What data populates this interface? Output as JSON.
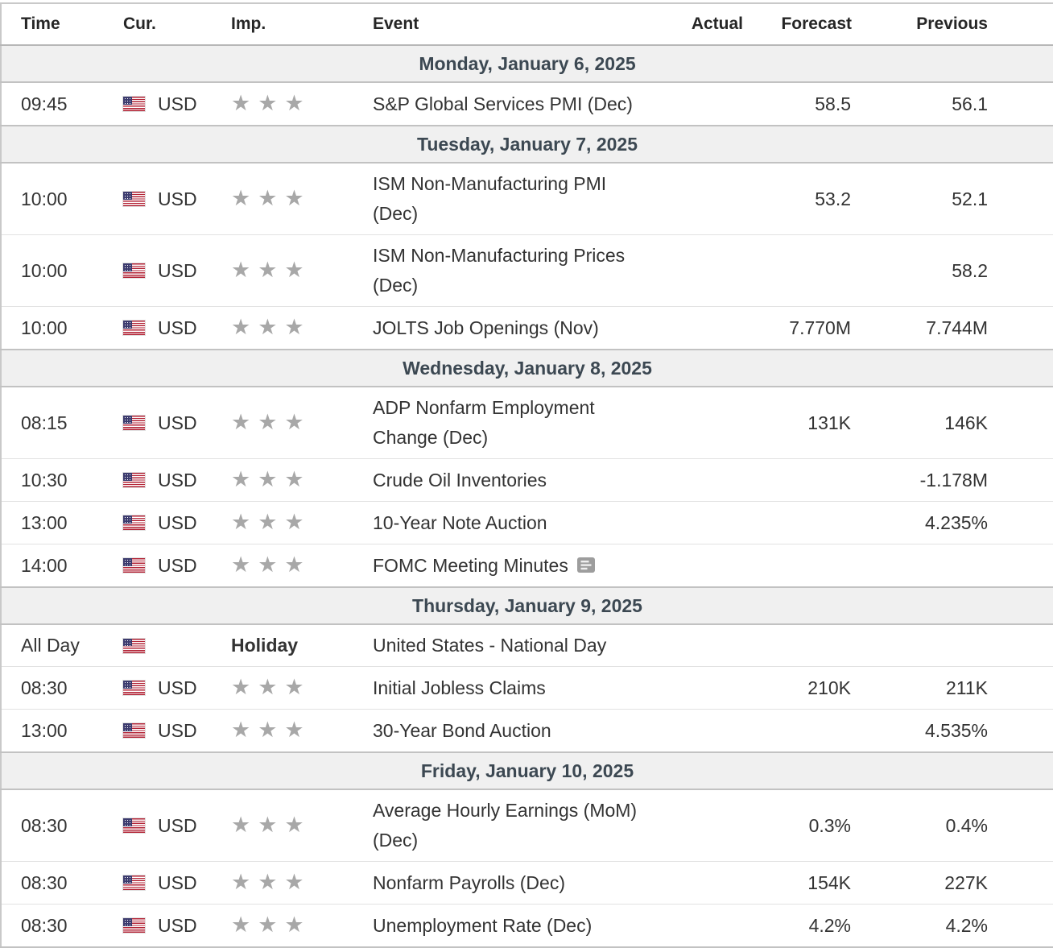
{
  "table": {
    "headers": {
      "time": "Time",
      "cur": "Cur.",
      "imp": "Imp.",
      "event": "Event",
      "actual": "Actual",
      "forecast": "Forecast",
      "previous": "Previous"
    }
  },
  "icons": {
    "star_char": "★",
    "flag": "us-flag",
    "report": "report-bubble"
  },
  "colors": {
    "day_header_bg": "#f0f0f0",
    "day_header_text": "#3c4852",
    "header_text": "#262626",
    "body_text": "#333333",
    "forecast_text": "#555555",
    "previous_text": "#0f0f0f",
    "star": "#a8a8a8",
    "flag_red": "#B22234",
    "flag_blue": "#3C3B6E",
    "row_divider": "#e2e2e2",
    "section_border": "#c2c2c2"
  },
  "days": [
    {
      "label": "Monday, January 6, 2025",
      "events": [
        {
          "time": "09:45",
          "currency": "USD",
          "importance": 3,
          "event": "S&P Global Services PMI (Dec)",
          "actual": "",
          "forecast": "58.5",
          "previous": "56.1"
        }
      ]
    },
    {
      "label": "Tuesday, January 7, 2025",
      "events": [
        {
          "time": "10:00",
          "currency": "USD",
          "importance": 3,
          "event": "ISM Non-Manufacturing PMI (Dec)",
          "actual": "",
          "forecast": "53.2",
          "previous": "52.1"
        },
        {
          "time": "10:00",
          "currency": "USD",
          "importance": 3,
          "event": "ISM Non-Manufacturing Prices (Dec)",
          "actual": "",
          "forecast": "",
          "previous": "58.2"
        },
        {
          "time": "10:00",
          "currency": "USD",
          "importance": 3,
          "event": "JOLTS Job Openings (Nov)",
          "actual": "",
          "forecast": "7.770M",
          "previous": "7.744M"
        }
      ]
    },
    {
      "label": "Wednesday, January 8, 2025",
      "events": [
        {
          "time": "08:15",
          "currency": "USD",
          "importance": 3,
          "event": "ADP Nonfarm Employment Change (Dec)",
          "actual": "",
          "forecast": "131K",
          "previous": "146K"
        },
        {
          "time": "10:30",
          "currency": "USD",
          "importance": 3,
          "event": "Crude Oil Inventories",
          "actual": "",
          "forecast": "",
          "previous": "-1.178M"
        },
        {
          "time": "13:00",
          "currency": "USD",
          "importance": 3,
          "event": "10-Year Note Auction",
          "actual": "",
          "forecast": "",
          "previous": "4.235%"
        },
        {
          "time": "14:00",
          "currency": "USD",
          "importance": 3,
          "event": "FOMC Meeting Minutes",
          "actual": "",
          "forecast": "",
          "previous": "",
          "report_icon": true
        }
      ]
    },
    {
      "label": "Thursday, January 9, 2025",
      "events": [
        {
          "time": "All Day",
          "currency": "",
          "importance": "Holiday",
          "event": "United States - National Day",
          "actual": "",
          "forecast": "",
          "previous": "",
          "holiday": true
        },
        {
          "time": "08:30",
          "currency": "USD",
          "importance": 3,
          "event": "Initial Jobless Claims",
          "actual": "",
          "forecast": "210K",
          "previous": "211K"
        },
        {
          "time": "13:00",
          "currency": "USD",
          "importance": 3,
          "event": "30-Year Bond Auction",
          "actual": "",
          "forecast": "",
          "previous": "4.535%"
        }
      ]
    },
    {
      "label": "Friday, January 10, 2025",
      "events": [
        {
          "time": "08:30",
          "currency": "USD",
          "importance": 3,
          "event": "Average Hourly Earnings (MoM) (Dec)",
          "actual": "",
          "forecast": "0.3%",
          "previous": "0.4%"
        },
        {
          "time": "08:30",
          "currency": "USD",
          "importance": 3,
          "event": "Nonfarm Payrolls (Dec)",
          "actual": "",
          "forecast": "154K",
          "previous": "227K"
        },
        {
          "time": "08:30",
          "currency": "USD",
          "importance": 3,
          "event": "Unemployment Rate (Dec)",
          "actual": "",
          "forecast": "4.2%",
          "previous": "4.2%"
        }
      ]
    }
  ]
}
